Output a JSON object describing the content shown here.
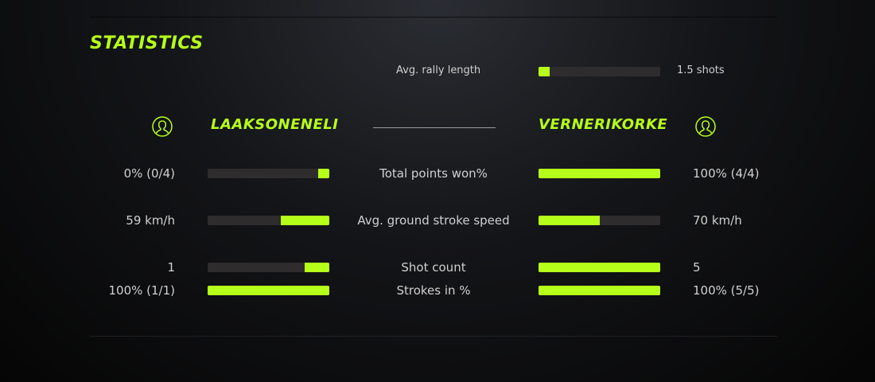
{
  "title": "STATISTICS",
  "accent": "#b6ff1a",
  "rally": {
    "label": "Avg. rally length",
    "value": "1.5 shots",
    "fill": 0.09
  },
  "players": {
    "left": {
      "name": "LAAKSONENELI",
      "icon": "user-circle-icon"
    },
    "right": {
      "name": "VERNERIKORKE",
      "icon": "user-circle-icon"
    }
  },
  "stats": [
    {
      "label": "Total points won%",
      "left": "0% (0/4)",
      "right": "100% (4/4)",
      "left_fill": 0.09,
      "right_fill": 1.0
    },
    {
      "label": "Avg. ground stroke speed",
      "left": "59 km/h",
      "right": "70 km/h",
      "left_fill": 0.4,
      "right_fill": 0.5
    },
    {
      "label": "Shot count",
      "left": "1",
      "right": "5",
      "left_fill": 0.2,
      "right_fill": 1.0
    },
    {
      "label": "Strokes in %",
      "left": "100% (1/1)",
      "right": "100% (5/5)",
      "left_fill": 1.0,
      "right_fill": 1.0
    }
  ]
}
